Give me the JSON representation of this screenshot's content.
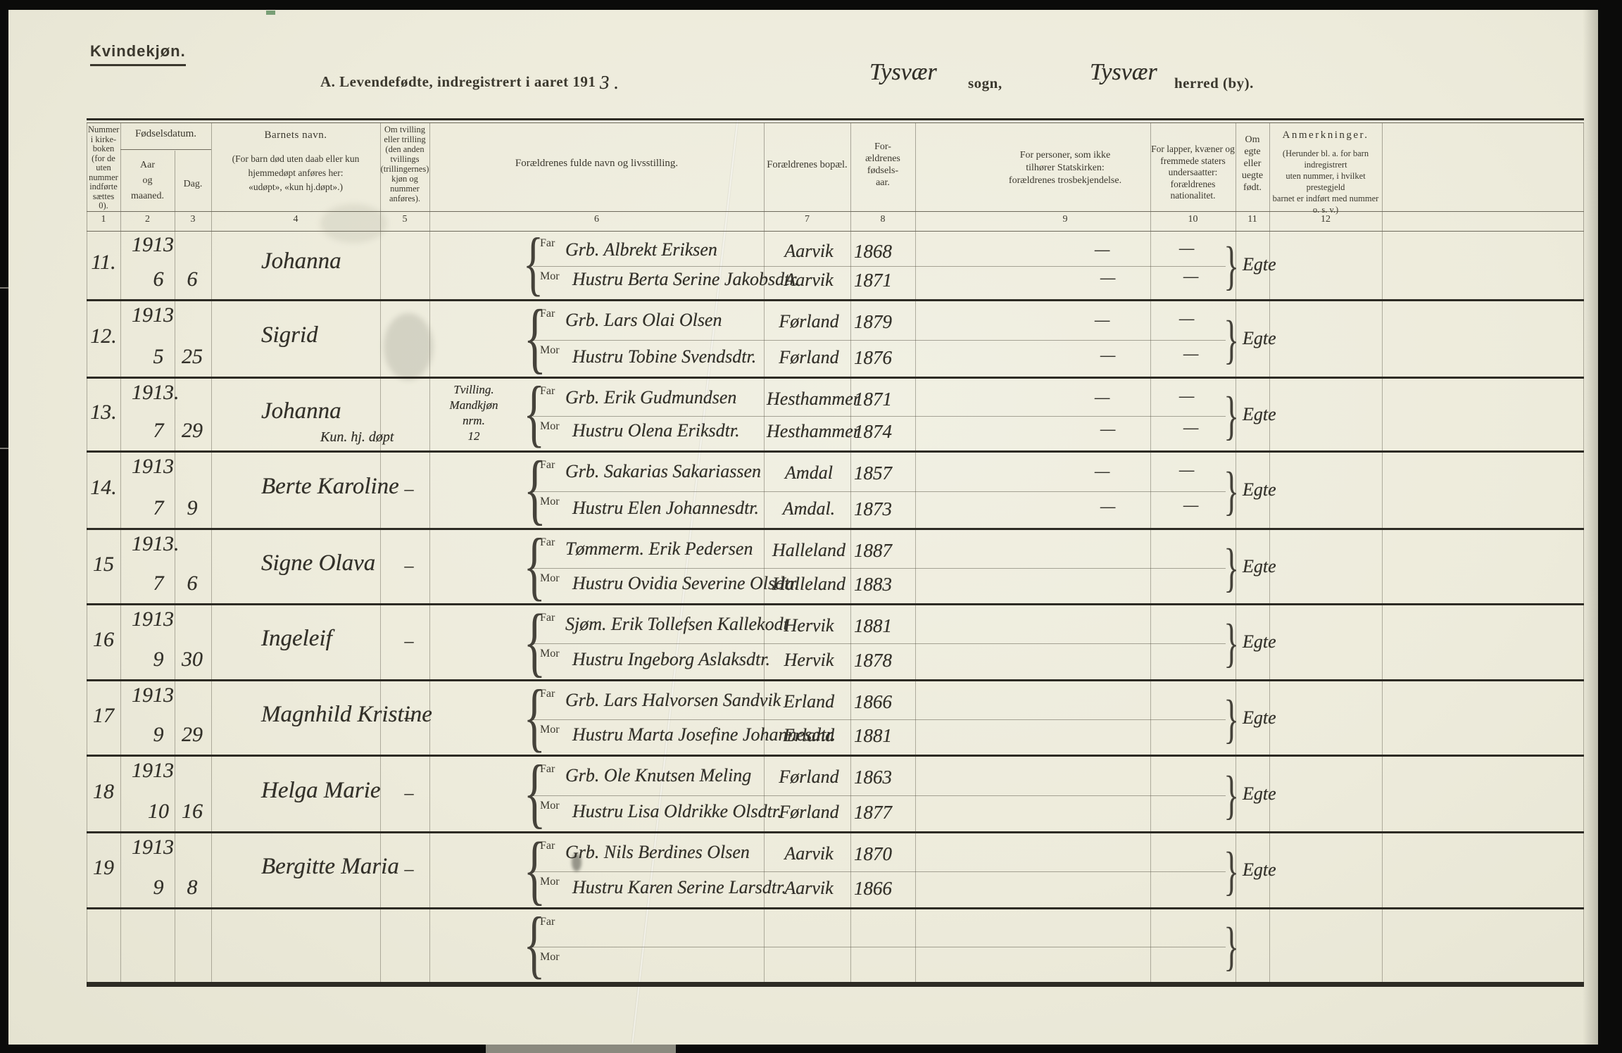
{
  "page": {
    "section_label": "Kvindekjøn.",
    "title_printed": "A.  Levendefødte, indregistrert i aaret 191",
    "title_year_hw": "3 .",
    "sogn_hw": "Tysvær",
    "sogn_label": "sogn,",
    "herred_hw": "Tysvær",
    "herred_label": "herred (by)."
  },
  "table": {
    "headers": {
      "col1": "Nummer\ni kirke-\nboken\n(for de\nuten\nnummer\nindførte\nsættes\n0).",
      "col2_group": "Fødselsdatum.",
      "col2": "Aar\nog\nmaaned.",
      "col3": "Dag.",
      "col4_title": "Barnets navn.",
      "col4_note": "(For barn død uten daab eller kun\nhjemmedøpt anføres her:\n«udøpt», «kun hj.døpt».)",
      "col5": "Om tvilling\neller trilling\n(den anden\ntvillings\n(trillingernes)\nkjøn og\nnummer\nanføres).",
      "col6": "Forældrenes fulde navn og livsstilling.",
      "col7": "Forældrenes bopæl.",
      "col8": "For-\nældrenes\nfødsels-\naar.",
      "col9": "For personer, som ikke\ntilhører Statskirken:\nforældrenes trosbekjendelse.",
      "col10": "For lapper, kvæner og\nfremmede staters\nundersaatter:\nforældrenes nationalitet.",
      "col11": "Om\negte\neller\nuegte\nfødt.",
      "col12_title": "Anmerkninger.",
      "col12_note": "(Herunder bl. a. for barn indregistrert\nuten nummer, i hvilket prestegjeld\nbarnet er indført med nummer o. s. v.)",
      "far_label": "Far",
      "mor_label": "Mor"
    },
    "column_numbers": [
      "1",
      "2",
      "3",
      "4",
      "5",
      "6",
      "7",
      "8",
      "9",
      "10",
      "11",
      "12"
    ],
    "brace_left": "{",
    "brace_right": "}",
    "dash_glyph": "—",
    "rows": [
      {
        "empty": false,
        "nr": "11.",
        "year": "1913",
        "month": "6",
        "day": "6",
        "name": "Johanna",
        "name_note": "",
        "twin": "",
        "far_name": "Grb. Albrekt Eriksen",
        "far_residence": "Aarvik",
        "far_birthyear": "1868",
        "mor_name": "Hustru Berta Serine Jakobsdtr.",
        "mor_residence": "Aarvik",
        "mor_birthyear": "1871",
        "statechurch_dash": true,
        "nationality_dash": true,
        "legitimacy": "Egte"
      },
      {
        "empty": false,
        "nr": "12.",
        "year": "1913",
        "month": "5",
        "day": "25",
        "name": "Sigrid",
        "name_note": "",
        "twin": "",
        "far_name": "Grb. Lars Olai Olsen",
        "far_residence": "Førland",
        "far_birthyear": "1879",
        "mor_name": "Hustru Tobine Svendsdtr.",
        "mor_residence": "Førland",
        "mor_birthyear": "1876",
        "statechurch_dash": true,
        "nationality_dash": true,
        "legitimacy": "Egte"
      },
      {
        "empty": false,
        "nr": "13.",
        "year": "1913.",
        "month": "7",
        "day": "29",
        "name": "Johanna",
        "name_note": "Kun. hj. døpt",
        "twin": "Tvilling.\nMandkjøn\nnrm.\n12",
        "far_name": "Grb. Erik Gudmundsen",
        "far_residence": "Hesthammer",
        "far_birthyear": "1871",
        "mor_name": "Hustru Olena Eriksdtr.",
        "mor_residence": "Hesthammer",
        "mor_birthyear": "1874",
        "statechurch_dash": true,
        "nationality_dash": true,
        "legitimacy": "Egte"
      },
      {
        "empty": false,
        "nr": "14.",
        "year": "1913",
        "month": "7",
        "day": "9",
        "name": "Berte Karoline",
        "name_note": "",
        "twin": "–",
        "far_name": "Grb. Sakarias Sakariassen",
        "far_residence": "Amdal",
        "far_birthyear": "1857",
        "mor_name": "Hustru Elen Johannesdtr.",
        "mor_residence": "Amdal.",
        "mor_birthyear": "1873",
        "statechurch_dash": true,
        "nationality_dash": true,
        "legitimacy": "Egte"
      },
      {
        "empty": false,
        "nr": "15",
        "year": "1913.",
        "month": "7",
        "day": "6",
        "name": "Signe Olava",
        "name_note": "",
        "twin": "–",
        "far_name": "Tømmerm. Erik Pedersen",
        "far_residence": "Halleland",
        "far_birthyear": "1887",
        "mor_name": "Hustru Ovidia Severine Olsdtr.",
        "mor_residence": "Halleland",
        "mor_birthyear": "1883",
        "statechurch_dash": false,
        "nationality_dash": false,
        "legitimacy": "Egte"
      },
      {
        "empty": false,
        "nr": "16",
        "year": "1913",
        "month": "9",
        "day": "30",
        "name": "Ingeleif",
        "name_note": "",
        "twin": "–",
        "far_name": "Sjøm. Erik Tollefsen Kallekodt",
        "far_residence": "Hervik",
        "far_birthyear": "1881",
        "mor_name": "Hustru Ingeborg Aslaksdtr.",
        "mor_residence": "Hervik",
        "mor_birthyear": "1878",
        "statechurch_dash": false,
        "nationality_dash": false,
        "legitimacy": "Egte"
      },
      {
        "empty": false,
        "nr": "17",
        "year": "1913",
        "month": "9",
        "day": "29",
        "name": "Magnhild Kristine",
        "name_note": "",
        "twin": "–",
        "far_name": "Grb. Lars Halvorsen Sandvik",
        "far_residence": "Erland",
        "far_birthyear": "1866",
        "mor_name": "Hustru Marta Josefine Johannesdtr.",
        "mor_residence": "Erland",
        "mor_birthyear": "1881",
        "statechurch_dash": false,
        "nationality_dash": false,
        "legitimacy": "Egte"
      },
      {
        "empty": false,
        "nr": "18",
        "year": "1913",
        "month": "10",
        "day": "16",
        "name": "Helga Marie",
        "name_note": "",
        "twin": "–",
        "far_name": "Grb. Ole Knutsen Meling",
        "far_residence": "Førland",
        "far_birthyear": "1863",
        "mor_name": "Hustru Lisa Oldrikke Olsdtr.",
        "mor_residence": "Førland",
        "mor_birthyear": "1877",
        "statechurch_dash": false,
        "nationality_dash": false,
        "legitimacy": "Egte"
      },
      {
        "empty": false,
        "nr": "19",
        "year": "1913",
        "month": "9",
        "day": "8",
        "name": "Bergitte Maria",
        "name_note": "",
        "twin": "–",
        "far_name": "Grb. Nils Berdines Olsen",
        "far_residence": "Aarvik",
        "far_birthyear": "1870",
        "mor_name": "Hustru Karen Serine Larsdtr.",
        "mor_residence": "Aarvik",
        "mor_birthyear": "1866",
        "statechurch_dash": false,
        "nationality_dash": false,
        "legitimacy": "Egte"
      },
      {
        "empty": true,
        "nr": "",
        "year": "",
        "month": "",
        "day": "",
        "name": "",
        "name_note": "",
        "twin": "",
        "far_name": "",
        "far_residence": "",
        "far_birthyear": "",
        "mor_name": "",
        "mor_residence": "",
        "mor_birthyear": "",
        "statechurch_dash": false,
        "nationality_dash": false,
        "legitimacy": ""
      }
    ]
  },
  "colors": {
    "paper": "#edebdb",
    "ink": "#33312a",
    "print": "#3b382e",
    "rule": "#2d2b24"
  }
}
